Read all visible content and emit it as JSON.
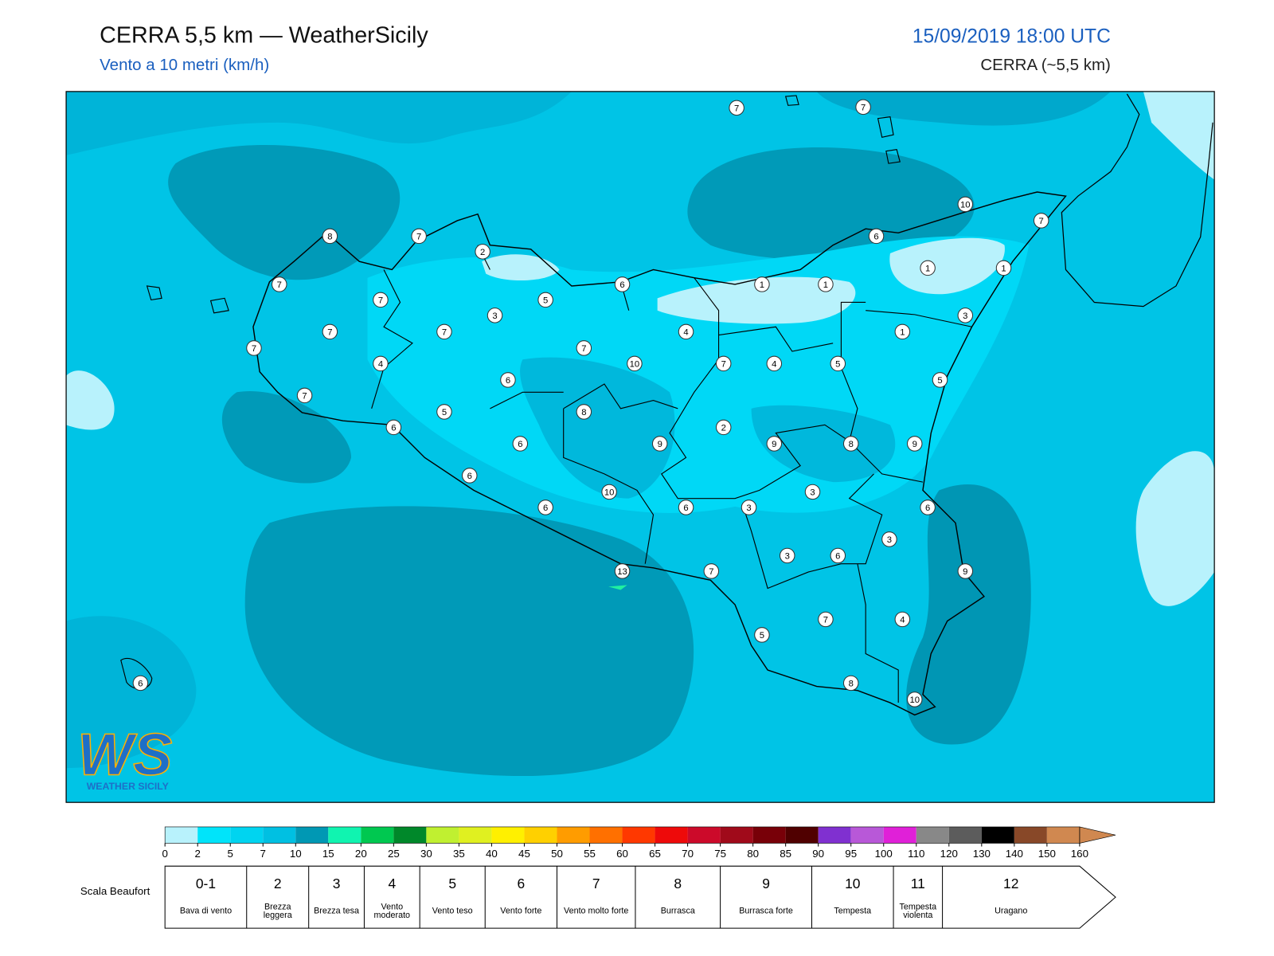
{
  "header": {
    "title": "CERRA 5,5 km — WeatherSicily",
    "subtitle": "Vento a 10 metri (km/h)",
    "datetime": "15/09/2019 18:00 UTC",
    "model": "CERRA (~5,5 km)"
  },
  "stations": [
    7,
    7,
    10,
    7,
    8,
    7,
    2,
    6,
    1,
    1,
    7,
    6,
    1,
    1,
    7,
    5,
    3,
    3,
    7,
    7,
    4,
    1,
    7,
    7,
    10,
    7,
    4,
    5,
    4,
    6,
    5,
    7,
    5,
    8,
    6,
    2,
    6,
    9,
    9,
    8,
    9,
    6,
    10,
    3,
    6,
    6,
    3,
    6,
    3,
    3,
    6,
    13,
    7,
    9,
    7,
    4,
    5,
    6,
    8,
    10
  ],
  "colorbar": {
    "ticks": [
      0,
      2,
      5,
      7,
      10,
      15,
      20,
      25,
      30,
      35,
      40,
      45,
      50,
      55,
      60,
      65,
      70,
      75,
      80,
      85,
      90,
      95,
      100,
      110,
      120,
      130,
      140,
      150,
      160
    ],
    "colors": [
      "#b8f2fc",
      "#00e4fa",
      "#00d4f0",
      "#00c0e2",
      "#0098b4",
      "#10f4b0",
      "#00c850",
      "#00882a",
      "#c0f030",
      "#e0f020",
      "#fff000",
      "#ffd000",
      "#ff9c00",
      "#ff7000",
      "#ff3800",
      "#ee0a0a",
      "#cc0a2a",
      "#a00a1a",
      "#780008",
      "#500000",
      "#8030d0",
      "#b858d8",
      "#e020d8",
      "#888888",
      "#5c5c5c",
      "#000000",
      "#884828",
      "#d08850"
    ]
  },
  "beaufort": {
    "label": "Scala Beaufort",
    "levels": [
      {
        "force": "0-1",
        "name": "Bava di vento"
      },
      {
        "force": "2",
        "name": "Brezza leggera"
      },
      {
        "force": "3",
        "name": "Brezza tesa"
      },
      {
        "force": "4",
        "name": "Vento moderato"
      },
      {
        "force": "5",
        "name": "Vento teso"
      },
      {
        "force": "6",
        "name": "Vento forte"
      },
      {
        "force": "7",
        "name": "Vento molto forte"
      },
      {
        "force": "8",
        "name": "Burrasca"
      },
      {
        "force": "9",
        "name": "Burrasca forte"
      },
      {
        "force": "10",
        "name": "Tempesta"
      },
      {
        "force": "11",
        "name": "Tempesta violenta"
      },
      {
        "force": "12",
        "name": "Uragano"
      }
    ]
  },
  "logo": {
    "mark": "WS",
    "text": "WEATHER SICILY"
  }
}
